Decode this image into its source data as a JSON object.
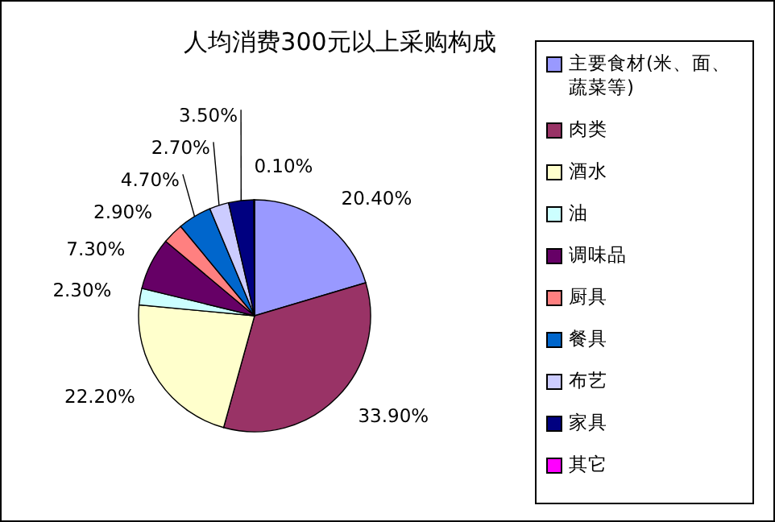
{
  "chart_data": {
    "type": "pie",
    "title": "人均消费300元以上采购构成",
    "categories": [
      "主要食材(米、面、蔬菜等)",
      "肉类",
      "酒水",
      "油",
      "调味品",
      "厨具",
      "餐具",
      "布艺",
      "家具",
      "其它"
    ],
    "values": [
      20.4,
      33.9,
      22.2,
      2.3,
      7.3,
      2.9,
      4.7,
      2.7,
      3.5,
      0.1
    ],
    "value_labels": [
      "20.40%",
      "33.90%",
      "22.20%",
      "2.30%",
      "7.30%",
      "2.90%",
      "4.70%",
      "2.70%",
      "3.50%",
      "0.10%"
    ],
    "colors": [
      "#9999ff",
      "#993366",
      "#ffffcc",
      "#ccffff",
      "#660066",
      "#ff8080",
      "#0066cc",
      "#ccccff",
      "#000080",
      "#ff00ff"
    ],
    "legend": "right"
  }
}
